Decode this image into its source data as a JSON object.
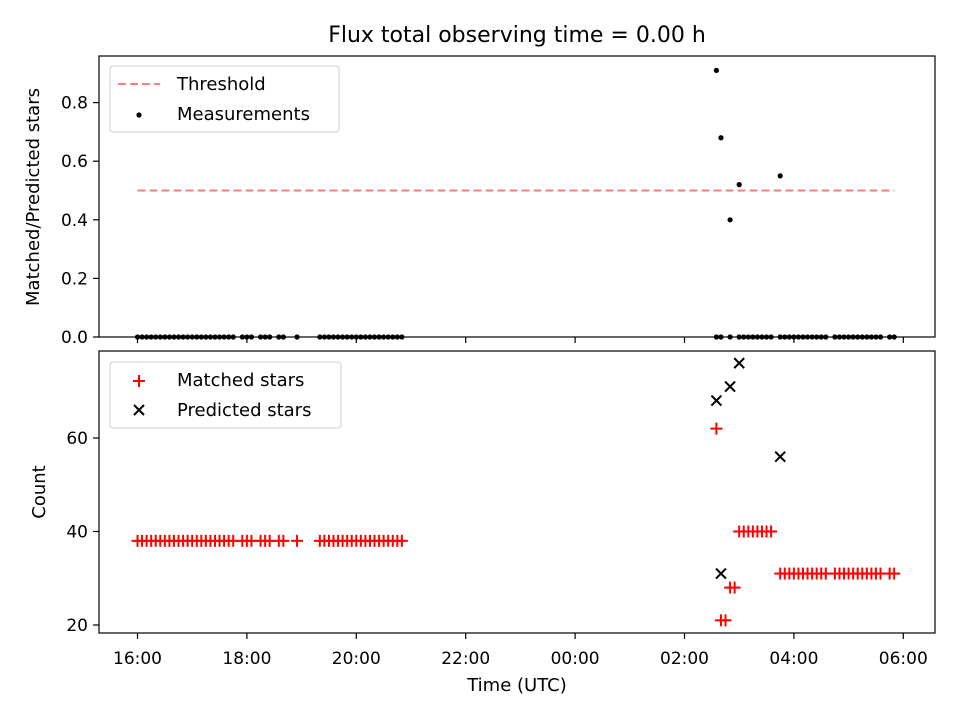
{
  "title": "Flux total observing time = 0.00 h",
  "chart_data": [
    {
      "type": "scatter",
      "panel": "top",
      "ylabel": "Matched/Predicted stars",
      "xlabel": "",
      "ylim": [
        0.0,
        0.95
      ],
      "yticks": [
        "0.0",
        "0.2",
        "0.4",
        "0.6",
        "0.8"
      ],
      "grid": false,
      "legend_placement": "top-left",
      "legend": [
        {
          "label": "Threshold",
          "style": "dashed-line",
          "color": "#ff7f7f"
        },
        {
          "label": "Measurements",
          "style": "dot",
          "color": "#000000"
        }
      ],
      "threshold": {
        "value": 0.5,
        "x_start": "16:00",
        "x_end": "05:50",
        "color": "#ff7f7f"
      },
      "series": [
        {
          "color": "#000000",
          "x": [
            "16:00",
            "16:05",
            "16:10",
            "16:15",
            "16:20",
            "16:25",
            "16:30",
            "16:35",
            "16:40",
            "16:45",
            "16:50",
            "16:55",
            "17:00",
            "17:05",
            "17:10",
            "17:15",
            "17:20",
            "17:25",
            "17:30",
            "17:35",
            "17:40",
            "17:45",
            "17:55",
            "18:00",
            "18:05",
            "18:15",
            "18:20",
            "18:25",
            "18:35",
            "18:40",
            "18:55",
            "19:20",
            "19:25",
            "19:30",
            "19:35",
            "19:40",
            "19:45",
            "19:50",
            "19:55",
            "20:00",
            "20:05",
            "20:10",
            "20:15",
            "20:20",
            "20:25",
            "20:30",
            "20:35",
            "20:40",
            "20:45",
            "20:50",
            "02:35",
            "02:40",
            "02:50",
            "03:00",
            "03:05",
            "03:10",
            "03:15",
            "03:20",
            "03:25",
            "03:30",
            "03:35",
            "03:45",
            "03:50",
            "03:55",
            "04:00",
            "04:05",
            "04:10",
            "04:15",
            "04:20",
            "04:25",
            "04:30",
            "04:35",
            "04:45",
            "04:50",
            "04:55",
            "05:00",
            "05:05",
            "05:10",
            "05:15",
            "05:20",
            "05:25",
            "05:30",
            "05:35",
            "05:45",
            "05:50",
            "02:35",
            "02:40",
            "02:50",
            "03:00",
            "03:45"
          ],
          "y": [
            0,
            0,
            0,
            0,
            0,
            0,
            0,
            0,
            0,
            0,
            0,
            0,
            0,
            0,
            0,
            0,
            0,
            0,
            0,
            0,
            0,
            0,
            0,
            0,
            0,
            0,
            0,
            0,
            0,
            0,
            0,
            0,
            0,
            0,
            0,
            0,
            0,
            0,
            0,
            0,
            0,
            0,
            0,
            0,
            0,
            0,
            0,
            0,
            0,
            0,
            0,
            0,
            0,
            0,
            0,
            0,
            0,
            0,
            0,
            0,
            0,
            0,
            0,
            0,
            0,
            0,
            0,
            0,
            0,
            0,
            0,
            0,
            0,
            0,
            0,
            0,
            0,
            0,
            0,
            0,
            0,
            0,
            0,
            0,
            0,
            0.91,
            0.68,
            0.4,
            0.52,
            0.55
          ]
        }
      ]
    },
    {
      "type": "scatter",
      "panel": "bottom",
      "ylabel": "Count",
      "xlabel": "Time (UTC)",
      "ylim": [
        18,
        78
      ],
      "yticks": [
        "20",
        "40",
        "60"
      ],
      "xticks": [
        "16:00",
        "18:00",
        "20:00",
        "22:00",
        "00:00",
        "02:00",
        "04:00",
        "06:00"
      ],
      "grid": false,
      "legend_placement": "top-left",
      "legend": [
        {
          "label": "Matched stars",
          "style": "plus",
          "color": "#ff0000"
        },
        {
          "label": "Predicted stars",
          "style": "cross",
          "color": "#000000"
        }
      ],
      "series": [
        {
          "name": "Matched stars",
          "marker": "plus",
          "color": "#ff0000",
          "x": [
            "16:00",
            "16:05",
            "16:10",
            "16:15",
            "16:20",
            "16:25",
            "16:30",
            "16:35",
            "16:40",
            "16:45",
            "16:50",
            "16:55",
            "17:00",
            "17:05",
            "17:10",
            "17:15",
            "17:20",
            "17:25",
            "17:30",
            "17:35",
            "17:40",
            "17:45",
            "17:55",
            "18:00",
            "18:05",
            "18:15",
            "18:20",
            "18:25",
            "18:35",
            "18:40",
            "18:55",
            "19:20",
            "19:25",
            "19:30",
            "19:35",
            "19:40",
            "19:45",
            "19:50",
            "19:55",
            "20:00",
            "20:05",
            "20:10",
            "20:15",
            "20:20",
            "20:25",
            "20:30",
            "20:35",
            "20:40",
            "20:45",
            "20:50",
            "02:35",
            "02:40",
            "02:45",
            "02:50",
            "02:55",
            "03:00",
            "03:05",
            "03:10",
            "03:15",
            "03:20",
            "03:25",
            "03:30",
            "03:35",
            "03:45",
            "03:50",
            "03:55",
            "04:00",
            "04:05",
            "04:10",
            "04:15",
            "04:20",
            "04:25",
            "04:30",
            "04:35",
            "04:45",
            "04:50",
            "04:55",
            "05:00",
            "05:05",
            "05:10",
            "05:15",
            "05:20",
            "05:25",
            "05:30",
            "05:35",
            "05:45",
            "05:50"
          ],
          "y": [
            38,
            38,
            38,
            38,
            38,
            38,
            38,
            38,
            38,
            38,
            38,
            38,
            38,
            38,
            38,
            38,
            38,
            38,
            38,
            38,
            38,
            38,
            38,
            38,
            38,
            38,
            38,
            38,
            38,
            38,
            38,
            38,
            38,
            38,
            38,
            38,
            38,
            38,
            38,
            38,
            38,
            38,
            38,
            38,
            38,
            38,
            38,
            38,
            38,
            38,
            62,
            21,
            21,
            28,
            28,
            40,
            40,
            40,
            40,
            40,
            40,
            40,
            40,
            31,
            31,
            31,
            31,
            31,
            31,
            31,
            31,
            31,
            31,
            31,
            31,
            31,
            31,
            31,
            31,
            31,
            31,
            31,
            31,
            31,
            31,
            31,
            31
          ]
        },
        {
          "name": "Predicted stars",
          "marker": "cross",
          "color": "#000000",
          "x": [
            "02:35",
            "02:40",
            "02:50",
            "03:00",
            "03:45"
          ],
          "y": [
            68,
            31,
            71,
            76,
            56
          ]
        }
      ]
    }
  ]
}
